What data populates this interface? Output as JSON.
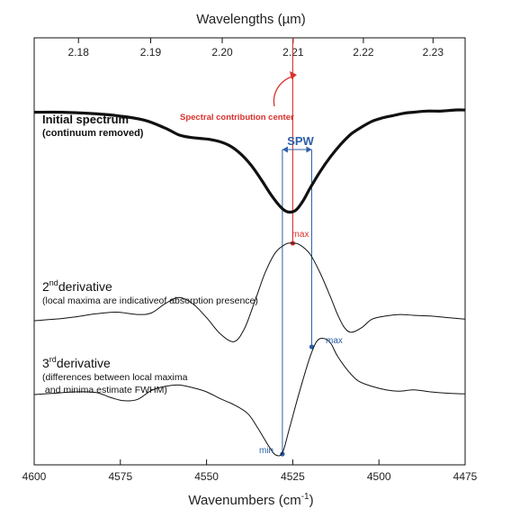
{
  "chart_data": {
    "type": "line",
    "title": "",
    "top_axis": {
      "label": "Wavelengths (µm)",
      "ticks": [
        "2.18",
        "2.19",
        "2.20",
        "2.21",
        "2.22",
        "2.23"
      ],
      "tick_values": [
        2.18,
        2.19,
        2.2,
        2.21,
        2.22,
        2.23
      ]
    },
    "bottom_axis": {
      "label": "Wavenumbers (cm",
      "label_sup": "-1",
      "label_end": ")",
      "ticks": [
        "4600",
        "4575",
        "4550",
        "4525",
        "4500",
        "4475"
      ],
      "tick_values": [
        4600,
        4575,
        4550,
        4525,
        4500,
        4475
      ],
      "xlim": [
        4600,
        4475
      ],
      "reversed": true
    },
    "grid": false,
    "series": [
      {
        "name": "Initial spectrum",
        "style": "thick",
        "x": [
          4600,
          4592,
          4584,
          4576,
          4568,
          4562,
          4558,
          4555,
          4552,
          4549,
          4546,
          4543,
          4540,
          4537,
          4534,
          4531,
          4528,
          4526,
          4524,
          4522,
          4520,
          4517,
          4514,
          4511,
          4508,
          4505,
          4502,
          4499,
          4496,
          4493,
          4490,
          4486,
          4482,
          4478,
          4475
        ],
        "y": [
          0.1,
          0.1,
          0.11,
          0.13,
          0.17,
          0.24,
          0.3,
          0.32,
          0.33,
          0.34,
          0.36,
          0.4,
          0.47,
          0.57,
          0.7,
          0.84,
          0.95,
          0.98,
          0.96,
          0.88,
          0.77,
          0.62,
          0.49,
          0.38,
          0.29,
          0.23,
          0.18,
          0.15,
          0.13,
          0.11,
          0.1,
          0.09,
          0.09,
          0.08,
          0.08
        ]
      },
      {
        "name": "2nd derivative",
        "style": "thin",
        "x": [
          4600,
          4594,
          4588,
          4582,
          4576,
          4570,
          4566,
          4562,
          4558,
          4554,
          4550,
          4546,
          4542,
          4539,
          4536,
          4533,
          4530,
          4527,
          4525,
          4523,
          4520,
          4517,
          4514,
          4512,
          4510,
          4508,
          4505,
          4502,
          4498,
          4494,
          4490,
          4485,
          4480,
          4475
        ],
        "y": [
          0.0,
          0.02,
          0.05,
          0.09,
          0.11,
          0.08,
          0.1,
          0.22,
          0.3,
          0.22,
          0.04,
          -0.17,
          -0.27,
          -0.1,
          0.25,
          0.62,
          0.88,
          0.99,
          1.0,
          0.98,
          0.86,
          0.61,
          0.3,
          0.08,
          -0.09,
          -0.15,
          -0.09,
          0.02,
          0.06,
          0.08,
          0.07,
          0.06,
          0.04,
          0.02
        ]
      },
      {
        "name": "3rd derivative",
        "style": "thin",
        "x": [
          4600,
          4594,
          4588,
          4582,
          4578,
          4574,
          4570,
          4566,
          4562,
          4558,
          4554,
          4550,
          4546,
          4542,
          4538,
          4535,
          4532,
          4530,
          4528,
          4526,
          4523,
          4520,
          4518,
          4516,
          4514,
          4512,
          4509,
          4506,
          4502,
          4498,
          4494,
          4490,
          4485,
          4480,
          4475
        ],
        "y": [
          0.0,
          0.02,
          0.04,
          0.03,
          -0.04,
          -0.09,
          -0.07,
          0.06,
          0.12,
          0.14,
          0.1,
          0.04,
          -0.06,
          -0.15,
          -0.28,
          -0.5,
          -0.75,
          -0.88,
          -0.85,
          -0.5,
          0.05,
          0.55,
          0.78,
          0.82,
          0.75,
          0.56,
          0.35,
          0.2,
          0.12,
          0.07,
          0.05,
          0.07,
          0.04,
          0.02,
          0.01
        ]
      }
    ],
    "annotations": {
      "spectrum_label": "Initial spectrum",
      "spectrum_sub": "(continuum removed)",
      "d2_label": "2",
      "d2_sup": "nd",
      "d2_word": "derivative",
      "d2_sub": "(local maxima are indicativeof absorption presence)",
      "d3_label": "3",
      "d3_sup": "rd",
      "d3_word": "derivative",
      "d3_sub1": "(differences between local maxima",
      "d3_sub2": " and minima estimate FWHM)",
      "contribution_center": "Spectral contribution center",
      "spw": "SPW",
      "max_red": "max",
      "max_blue": "max",
      "min_blue": "min",
      "center_wavenumber": 4525,
      "spw_range": [
        4528,
        4519.5
      ],
      "d3_max_wavenumber": 4519.5,
      "d3_min_wavenumber": 4529
    },
    "colors": {
      "line": "#111111",
      "contribution": "#d9302b",
      "spw": "#2d5fa8"
    }
  }
}
